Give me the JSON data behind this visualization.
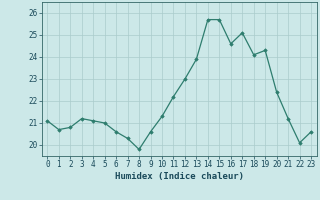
{
  "x": [
    0,
    1,
    2,
    3,
    4,
    5,
    6,
    7,
    8,
    9,
    10,
    11,
    12,
    13,
    14,
    15,
    16,
    17,
    18,
    19,
    20,
    21,
    22,
    23
  ],
  "y": [
    21.1,
    20.7,
    20.8,
    21.2,
    21.1,
    21.0,
    20.6,
    20.3,
    19.8,
    20.6,
    21.3,
    22.2,
    23.0,
    23.9,
    25.7,
    25.7,
    24.6,
    25.1,
    24.1,
    24.3,
    22.4,
    21.2,
    20.1,
    20.6
  ],
  "line_color": "#2e7d6e",
  "marker": "D",
  "marker_size": 1.8,
  "bg_color": "#cce8e8",
  "grid_color": "#aacccc",
  "xlabel": "Humidex (Indice chaleur)",
  "ylabel": "",
  "xlim": [
    -0.5,
    23.5
  ],
  "ylim": [
    19.5,
    26.5
  ],
  "yticks": [
    20,
    21,
    22,
    23,
    24,
    25,
    26
  ],
  "xtick_labels": [
    "0",
    "1",
    "2",
    "3",
    "4",
    "5",
    "6",
    "7",
    "8",
    "9",
    "10",
    "11",
    "12",
    "13",
    "14",
    "15",
    "16",
    "17",
    "18",
    "19",
    "20",
    "21",
    "22",
    "23"
  ],
  "xlabel_fontsize": 6.5,
  "tick_fontsize": 5.5,
  "label_color": "#1a4a5a",
  "spine_color": "#336666"
}
